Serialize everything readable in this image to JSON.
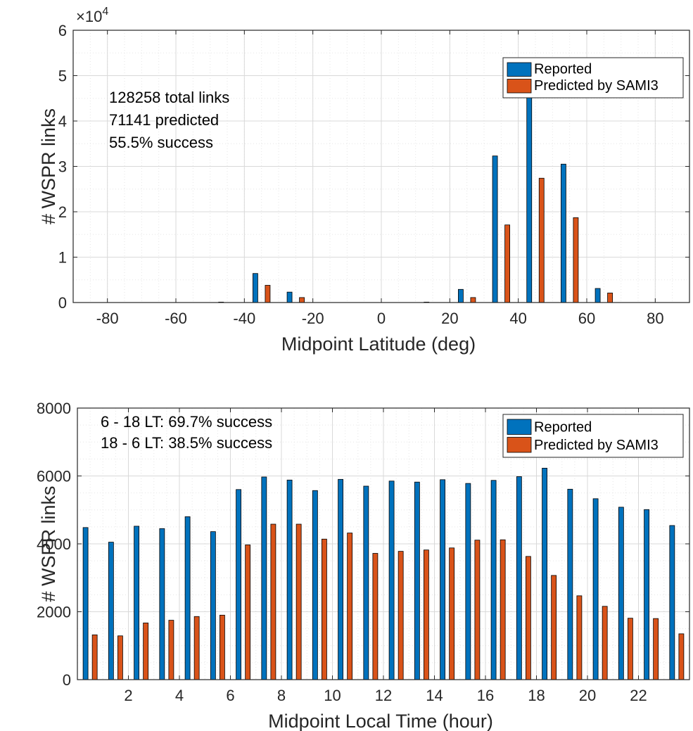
{
  "colors": {
    "reported": "#0072BD",
    "predicted": "#D95319",
    "grid": "#d9d9d9",
    "axis": "#262626"
  },
  "chart_data": [
    {
      "type": "bar",
      "title": "",
      "xlabel": "Midpoint Latitude (deg)",
      "ylabel": "# WSPR links",
      "xlim": [
        -90,
        90
      ],
      "ylim": [
        0,
        60000
      ],
      "y_exponent_label": "×10",
      "y_exponent_power": "4",
      "xticks": [
        -80,
        -60,
        -40,
        -20,
        0,
        20,
        40,
        60,
        80
      ],
      "xtick_labels": [
        "-80",
        "-60",
        "-40",
        "-20",
        "0",
        "20",
        "40",
        "60",
        "80"
      ],
      "yticks": [
        0,
        10000,
        20000,
        30000,
        40000,
        50000,
        60000
      ],
      "ytick_labels": [
        "0",
        "1",
        "2",
        "3",
        "4",
        "5",
        "6"
      ],
      "grid": "major and minor, dotted",
      "legend": {
        "placement": "top-right",
        "entries": [
          "Reported",
          "Predicted by SAMI3"
        ]
      },
      "annotations": [
        "128258 total links",
        "71141 predicted",
        "55.5% success"
      ],
      "x": [
        -85,
        -75,
        -65,
        -55,
        -45,
        -35,
        -25,
        -15,
        -5,
        5,
        15,
        25,
        35,
        45,
        55,
        65,
        75,
        85
      ],
      "series": [
        {
          "name": "Reported",
          "values": [
            0,
            0,
            0,
            0,
            100,
            6400,
            2300,
            0,
            0,
            0,
            100,
            2900,
            32300,
            51000,
            30500,
            3100,
            0,
            0
          ]
        },
        {
          "name": "Predicted by SAMI3",
          "values": [
            0,
            0,
            0,
            0,
            0,
            3800,
            1100,
            0,
            0,
            0,
            0,
            1100,
            17100,
            27400,
            18700,
            2100,
            0,
            0
          ]
        }
      ]
    },
    {
      "type": "bar",
      "title": "",
      "xlabel": "Midpoint Local Time (hour)",
      "ylabel": "# WSPR links",
      "xlim": [
        0,
        24
      ],
      "ylim": [
        0,
        8000
      ],
      "xticks": [
        2,
        4,
        6,
        8,
        10,
        12,
        14,
        16,
        18,
        20,
        22
      ],
      "xtick_labels": [
        "2",
        "4",
        "6",
        "8",
        "10",
        "12",
        "14",
        "16",
        "18",
        "20",
        "22"
      ],
      "yticks": [
        0,
        2000,
        4000,
        6000,
        8000
      ],
      "ytick_labels": [
        "0",
        "2000",
        "4000",
        "6000",
        "8000"
      ],
      "grid": "major and minor, dotted",
      "legend": {
        "placement": "top-right",
        "entries": [
          "Reported",
          "Predicted by SAMI3"
        ]
      },
      "annotations": [
        "6 - 18 LT: 69.7% success",
        "18 - 6 LT: 38.5% success"
      ],
      "x": [
        0.5,
        1.5,
        2.5,
        3.5,
        4.5,
        5.5,
        6.5,
        7.5,
        8.5,
        9.5,
        10.5,
        11.5,
        12.5,
        13.5,
        14.5,
        15.5,
        16.5,
        17.5,
        18.5,
        19.5,
        20.5,
        21.5,
        22.5,
        23.5
      ],
      "series": [
        {
          "name": "Reported",
          "values": [
            4480,
            4050,
            4520,
            4450,
            4800,
            4360,
            5600,
            5970,
            5880,
            5570,
            5900,
            5700,
            5850,
            5820,
            5890,
            5780,
            5870,
            5980,
            6230,
            5610,
            5330,
            5080,
            5010,
            4540
          ]
        },
        {
          "name": "Predicted by SAMI3",
          "values": [
            1320,
            1290,
            1670,
            1750,
            1860,
            1900,
            3970,
            4580,
            4580,
            4140,
            4320,
            3720,
            3780,
            3820,
            3880,
            4110,
            4120,
            3630,
            3070,
            2470,
            2160,
            1810,
            1800,
            1350
          ]
        }
      ]
    }
  ]
}
